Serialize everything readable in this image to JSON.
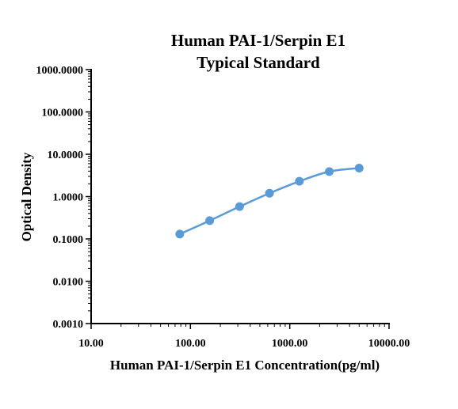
{
  "chart_data": {
    "type": "scatter",
    "title": "Human PAI-1/Serpin E1",
    "subtitle": "Typical Standard",
    "xlabel": "Human PAI-1/Serpin E1 Concentration(pg/ml)",
    "ylabel": "Optical Density",
    "xscale": "log",
    "yscale": "log",
    "xlim": [
      10,
      10000
    ],
    "ylim": [
      0.001,
      1000
    ],
    "xtick_labels": [
      "10.00",
      "100.00",
      "1000.00",
      "10000.00"
    ],
    "ytick_labels": [
      "0.0010",
      "0.0100",
      "0.1000",
      "1.0000",
      "10.0000",
      "100.0000",
      "1000.0000"
    ],
    "series": [
      {
        "x": [
          78.125,
          156.25,
          312.5,
          625,
          1250,
          2500,
          5000
        ],
        "y": [
          0.13,
          0.27,
          0.58,
          1.2,
          2.3,
          3.9,
          4.7
        ],
        "fit_curve": true
      }
    ],
    "grid": false,
    "legend": "none",
    "colors": {
      "series": "#5b9bd5",
      "axis": "#000000"
    }
  }
}
